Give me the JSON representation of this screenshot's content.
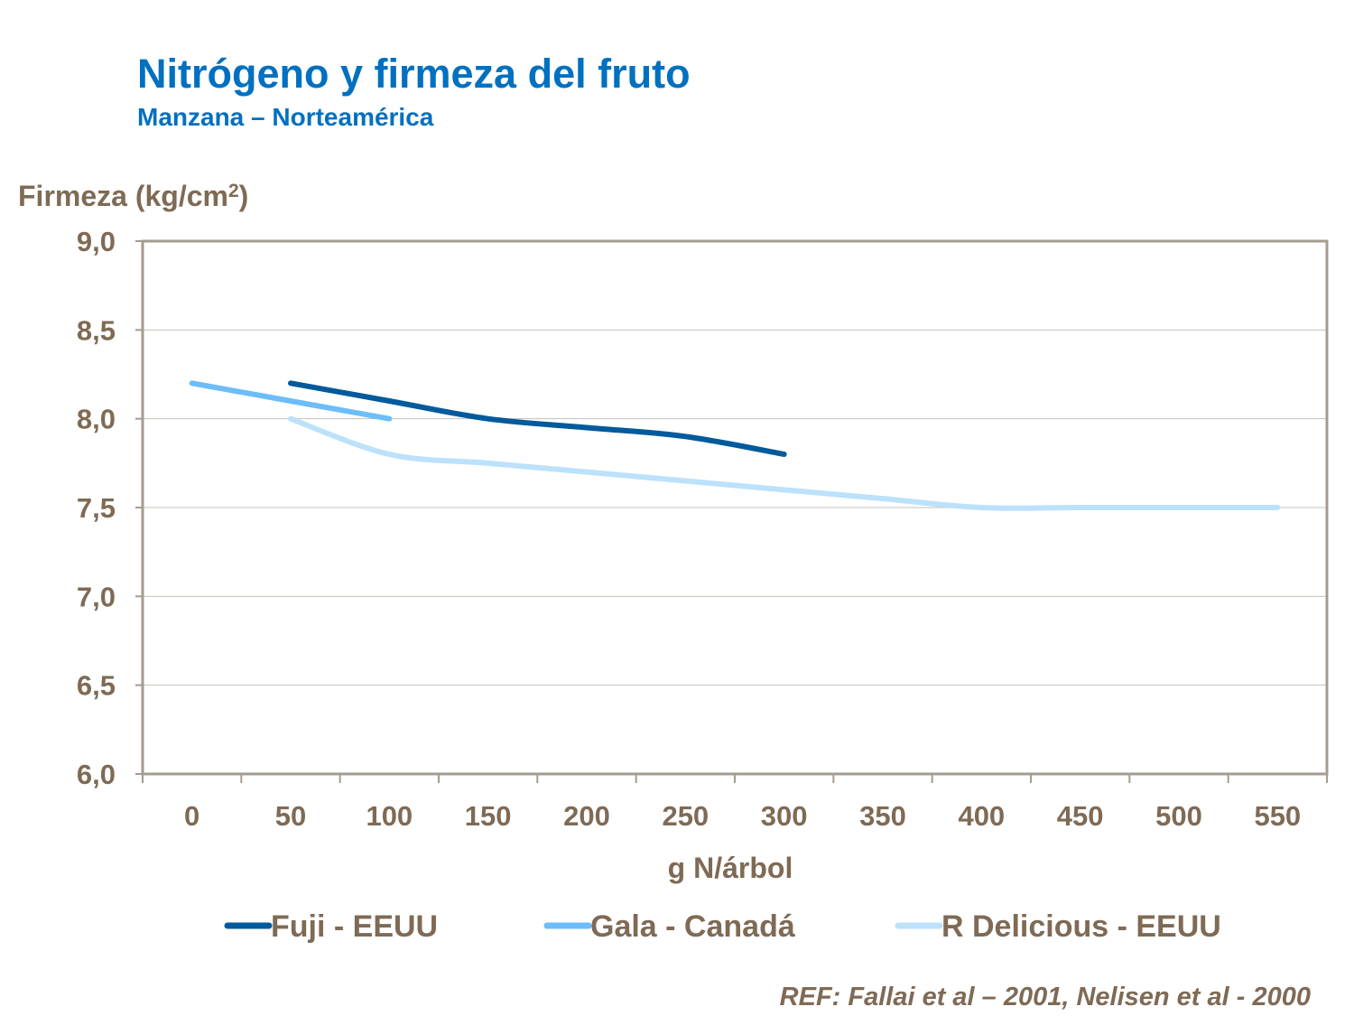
{
  "title": "Nitrógeno y firmeza del fruto",
  "subtitle": "Manzana – Norteamérica",
  "reference": "REF: Fallai et al – 2001, Nelisen et al - 2000",
  "chart_data": {
    "type": "line",
    "ylabel": "Firmeza (kg/cm",
    "ylabel_sup": "2",
    "ylabel_end": ")",
    "xlabel": "g N/árbol",
    "categories": [
      "0",
      "50",
      "100",
      "150",
      "200",
      "250",
      "300",
      "350",
      "400",
      "450",
      "500",
      "550"
    ],
    "y_ticks": [
      "6,0",
      "6,5",
      "7,0",
      "7,5",
      "8,0",
      "8,5",
      "9,0"
    ],
    "ylim": [
      6.0,
      9.0
    ],
    "grid": true,
    "legend": "bottom",
    "series": [
      {
        "name": "Fuji - EEUU",
        "color": "#005A9C",
        "x": [
          50,
          100,
          150,
          200,
          250,
          300
        ],
        "values": [
          8.2,
          8.1,
          8.0,
          7.95,
          7.9,
          7.8
        ]
      },
      {
        "name": "Gala - Canadá",
        "color": "#6CBDFA",
        "x": [
          0,
          50,
          100
        ],
        "values": [
          8.2,
          8.1,
          8.0
        ]
      },
      {
        "name": "R Delicious - EEUU",
        "color": "#BCE1FB",
        "x": [
          50,
          100,
          150,
          200,
          250,
          300,
          350,
          400,
          450,
          500,
          550
        ],
        "values": [
          8.0,
          7.8,
          7.75,
          7.7,
          7.65,
          7.6,
          7.55,
          7.5,
          7.5,
          7.5,
          7.5
        ]
      }
    ],
    "colors": {
      "text": "#7F6A55",
      "axis": "#A59B8F",
      "grid": "#C8C0B8"
    }
  }
}
